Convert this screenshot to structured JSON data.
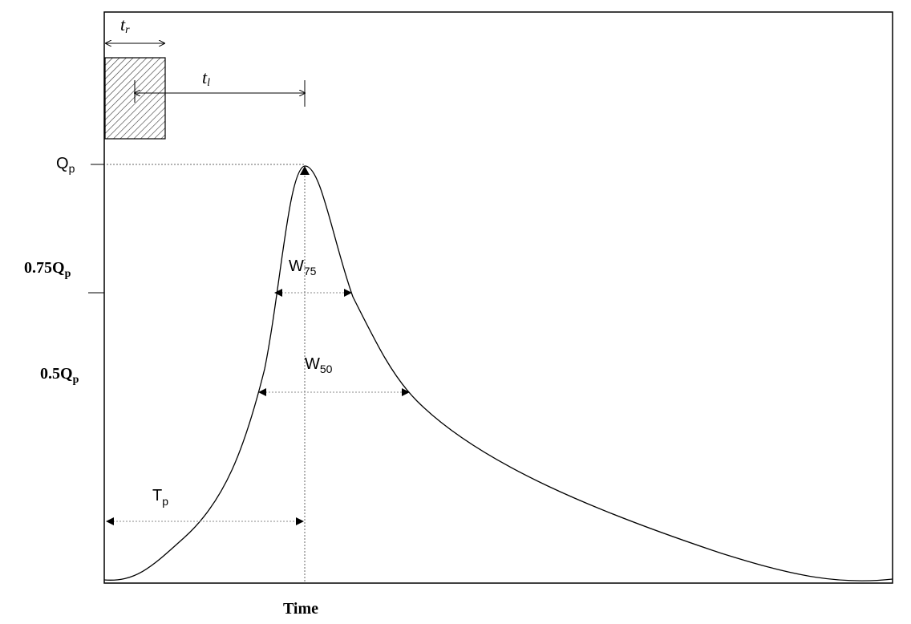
{
  "diagram": {
    "rainfall_duration": {
      "base": "t",
      "sub": "r"
    },
    "lag_time": {
      "base": "t",
      "sub": "l"
    },
    "peak": {
      "base": "Q",
      "sub": "p"
    },
    "q75": {
      "base": "0.75Q",
      "sub": "p"
    },
    "q50": {
      "base": "0.5Q",
      "sub": "p"
    },
    "width75": {
      "base": "W",
      "sub": "75"
    },
    "width50": {
      "base": "W",
      "sub": "50"
    },
    "time_to_peak": {
      "base": "T",
      "sub": "p"
    },
    "x_label": "Time"
  }
}
